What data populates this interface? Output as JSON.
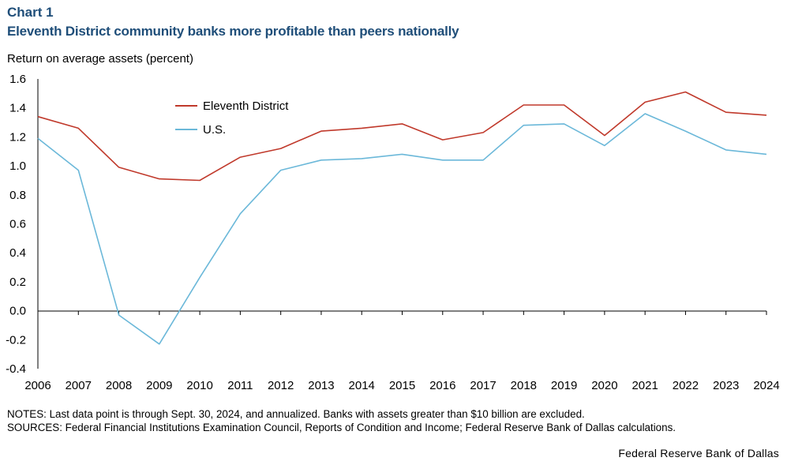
{
  "header": {
    "chart_number": "Chart 1",
    "title": "Eleventh District community banks more profitable than peers nationally"
  },
  "footer": {
    "notes": "NOTES: Last data point is through Sept. 30, 2024, and annualized. Banks with assets greater than $10 billion are excluded.",
    "sources": "SOURCES: Federal Financial Institutions Examination Council, Reports of Condition and Income; Federal Reserve Bank of Dallas calculations.",
    "brand": "Federal Reserve Bank of Dallas"
  },
  "colors": {
    "eleventh_district": "#c0392b",
    "us": "#6bb8d9",
    "axis": "#000000"
  },
  "chart_data": {
    "type": "line",
    "title": "Eleventh District community banks more profitable than peers nationally",
    "ylabel": "Return on average assets (percent)",
    "xlabel": "",
    "ylim": [
      -0.4,
      1.6
    ],
    "yticks": [
      "1.6",
      "1.4",
      "1.2",
      "1.0",
      "0.8",
      "0.6",
      "0.4",
      "0.2",
      "0.0",
      "-0.2",
      "-0.4"
    ],
    "x": [
      "2006",
      "2007",
      "2008",
      "2009",
      "2010",
      "2011",
      "2012",
      "2013",
      "2014",
      "2015",
      "2016",
      "2017",
      "2018",
      "2019",
      "2020",
      "2021",
      "2022",
      "2023",
      "2024"
    ],
    "legend_position": "upper-left",
    "series": [
      {
        "name": "Eleventh District",
        "color": "#c0392b",
        "values": [
          1.34,
          1.26,
          0.99,
          0.91,
          0.9,
          1.06,
          1.12,
          1.24,
          1.26,
          1.29,
          1.18,
          1.23,
          1.42,
          1.42,
          1.21,
          1.44,
          1.51,
          1.37,
          1.35
        ]
      },
      {
        "name": "U.S.",
        "color": "#6bb8d9",
        "values": [
          1.19,
          0.97,
          -0.03,
          -0.23,
          0.23,
          0.67,
          0.97,
          1.04,
          1.05,
          1.08,
          1.04,
          1.04,
          1.28,
          1.29,
          1.14,
          1.36,
          1.24,
          1.11,
          1.08
        ]
      }
    ]
  }
}
